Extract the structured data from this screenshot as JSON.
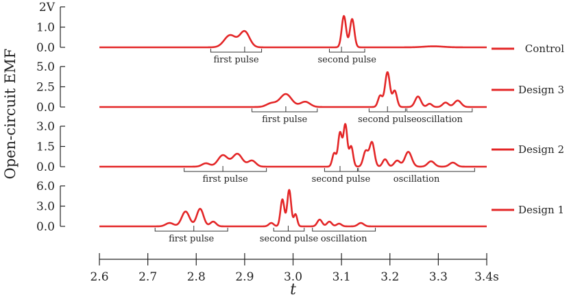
{
  "chart_data": {
    "type": "line",
    "ylabel": "Open-circuit EMF",
    "xlabel": "t",
    "xunit": "s",
    "yunit": "V",
    "xlim": [
      2.6,
      3.4
    ],
    "x_ticks": [
      2.6,
      2.7,
      2.8,
      2.9,
      3.0,
      3.1,
      3.2,
      3.3,
      3.4
    ],
    "x_tick_labels": [
      "2.6",
      "2.7",
      "2.8",
      "2.9",
      "3.0",
      "3.1",
      "3.2",
      "3.3",
      "3.4s"
    ],
    "line_color": "#e32526",
    "panels": [
      {
        "name": "Control",
        "ylim": [
          0,
          2
        ],
        "y_ticks": [
          0.0,
          1.0,
          2.0
        ],
        "y_tick_labels": [
          "0.0",
          "1.0",
          "2V"
        ],
        "peaks": [
          {
            "t": 2.87,
            "amp": 0.6,
            "w": 0.012
          },
          {
            "t": 2.9,
            "amp": 0.78,
            "w": 0.01
          },
          {
            "t": 3.105,
            "amp": 1.55,
            "w": 0.0045
          },
          {
            "t": 3.122,
            "amp": 1.4,
            "w": 0.0045
          },
          {
            "t": 3.29,
            "amp": 0.05,
            "w": 0.02
          }
        ],
        "annotations": [
          {
            "text": "first pulse",
            "range": [
              2.83,
              2.935
            ],
            "mark": 2.9
          },
          {
            "text": "second pulse",
            "range": [
              3.075,
              3.148
            ],
            "mark": 3.1
          }
        ]
      },
      {
        "name": "Design 3",
        "ylim": [
          0,
          5
        ],
        "y_ticks": [
          0.0,
          2.5,
          5.0
        ],
        "y_tick_labels": [
          "0.0",
          "2.5",
          "5.0"
        ],
        "peaks": [
          {
            "t": 2.955,
            "amp": 0.45,
            "w": 0.01
          },
          {
            "t": 2.985,
            "amp": 1.6,
            "w": 0.012
          },
          {
            "t": 3.025,
            "amp": 0.65,
            "w": 0.01
          },
          {
            "t": 3.18,
            "amp": 1.4,
            "w": 0.0045
          },
          {
            "t": 3.195,
            "amp": 4.3,
            "w": 0.005
          },
          {
            "t": 3.21,
            "amp": 2.0,
            "w": 0.0045
          },
          {
            "t": 3.258,
            "amp": 1.3,
            "w": 0.006
          },
          {
            "t": 3.282,
            "amp": 0.4,
            "w": 0.005
          },
          {
            "t": 3.315,
            "amp": 0.55,
            "w": 0.006
          },
          {
            "t": 3.34,
            "amp": 0.8,
            "w": 0.007
          }
        ],
        "annotations": [
          {
            "text": "first pulse",
            "range": [
              2.915,
              3.05
            ],
            "mark": 2.985
          },
          {
            "text": "second pulse",
            "range": [
              3.157,
              3.232
            ],
            "mark": 3.195
          },
          {
            "text": "oscillation",
            "range": [
              3.235,
              3.37
            ],
            "mark": null
          }
        ]
      },
      {
        "name": "Design 2",
        "ylim": [
          0,
          3
        ],
        "y_ticks": [
          0.0,
          1.5,
          3.0
        ],
        "y_tick_labels": [
          "0.0",
          "1.5",
          "3.0"
        ],
        "peaks": [
          {
            "t": 2.82,
            "amp": 0.25,
            "w": 0.008
          },
          {
            "t": 2.855,
            "amp": 0.85,
            "w": 0.01
          },
          {
            "t": 2.885,
            "amp": 0.95,
            "w": 0.01
          },
          {
            "t": 2.915,
            "amp": 0.45,
            "w": 0.008
          },
          {
            "t": 3.085,
            "amp": 1.0,
            "w": 0.004
          },
          {
            "t": 3.097,
            "amp": 2.5,
            "w": 0.004
          },
          {
            "t": 3.108,
            "amp": 3.1,
            "w": 0.004
          },
          {
            "t": 3.12,
            "amp": 1.5,
            "w": 0.004
          },
          {
            "t": 3.15,
            "amp": 1.15,
            "w": 0.005
          },
          {
            "t": 3.163,
            "amp": 1.8,
            "w": 0.005
          },
          {
            "t": 3.19,
            "amp": 0.55,
            "w": 0.005
          },
          {
            "t": 3.215,
            "amp": 0.45,
            "w": 0.006
          },
          {
            "t": 3.238,
            "amp": 1.1,
            "w": 0.007
          },
          {
            "t": 3.285,
            "amp": 0.4,
            "w": 0.007
          },
          {
            "t": 3.33,
            "amp": 0.3,
            "w": 0.007
          }
        ],
        "annotations": [
          {
            "text": "first pulse",
            "range": [
              2.775,
              2.945
            ],
            "mark": 2.855
          },
          {
            "text": "second pulse",
            "range": [
              3.065,
              3.133
            ],
            "mark": 3.097
          },
          {
            "text": "oscillation",
            "range": [
              3.135,
              3.375
            ],
            "mark": null
          }
        ]
      },
      {
        "name": "Design 1",
        "ylim": [
          0,
          6
        ],
        "y_ticks": [
          0.0,
          3.0,
          6.0
        ],
        "y_tick_labels": [
          "0.0",
          "3.0",
          "6.0"
        ],
        "peaks": [
          {
            "t": 2.745,
            "amp": 0.5,
            "w": 0.008
          },
          {
            "t": 2.778,
            "amp": 2.2,
            "w": 0.008
          },
          {
            "t": 2.808,
            "amp": 2.6,
            "w": 0.007
          },
          {
            "t": 2.835,
            "amp": 0.7,
            "w": 0.006
          },
          {
            "t": 2.955,
            "amp": 0.5,
            "w": 0.005
          },
          {
            "t": 2.978,
            "amp": 4.0,
            "w": 0.004
          },
          {
            "t": 2.992,
            "amp": 5.4,
            "w": 0.004
          },
          {
            "t": 3.005,
            "amp": 1.8,
            "w": 0.0035
          },
          {
            "t": 3.055,
            "amp": 1.0,
            "w": 0.005
          },
          {
            "t": 3.075,
            "amp": 0.7,
            "w": 0.005
          },
          {
            "t": 3.095,
            "amp": 0.4,
            "w": 0.005
          },
          {
            "t": 3.14,
            "amp": 0.5,
            "w": 0.006
          }
        ],
        "annotations": [
          {
            "text": "first pulse",
            "range": [
              2.715,
              2.865
            ],
            "mark": 2.795
          },
          {
            "text": "second pulse",
            "range": [
              2.96,
              3.023
            ],
            "mark": 2.99
          },
          {
            "text": "oscillation",
            "range": [
              3.04,
              3.17
            ],
            "mark": null
          }
        ]
      }
    ]
  }
}
